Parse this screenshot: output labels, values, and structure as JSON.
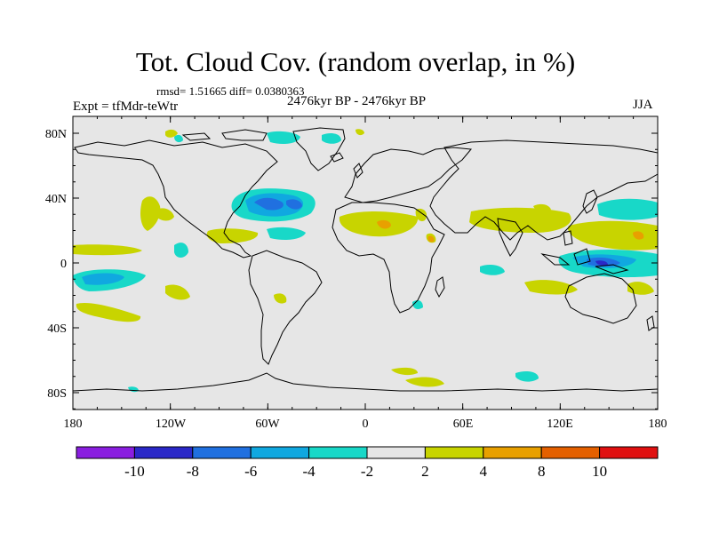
{
  "title": "Tot. Cloud Cov. (random overlap, in %)",
  "stats": "rmsd= 1.51665 diff= 0.0380363",
  "experiment": "Expt = tfMdr-teWtr",
  "period": "2476kyr BP - 2476kyr BP",
  "season": "JJA",
  "map": {
    "background": "#e6e6e6",
    "lon_ticks": [
      "180",
      "120W",
      "60W",
      "0",
      "60E",
      "120E",
      "180"
    ],
    "lat_ticks": [
      "80N",
      "40N",
      "0",
      "40S",
      "80S"
    ]
  },
  "colorbar": {
    "colors": [
      "#8a1ee0",
      "#2a28c8",
      "#2070e0",
      "#10a8e0",
      "#18d8c8",
      "#e6e6e6",
      "#c8d400",
      "#e8a000",
      "#e46000",
      "#e01010"
    ],
    "labels": [
      "-10",
      "-8",
      "-6",
      "-4",
      "-2",
      "2",
      "4",
      "8",
      "10"
    ]
  }
}
